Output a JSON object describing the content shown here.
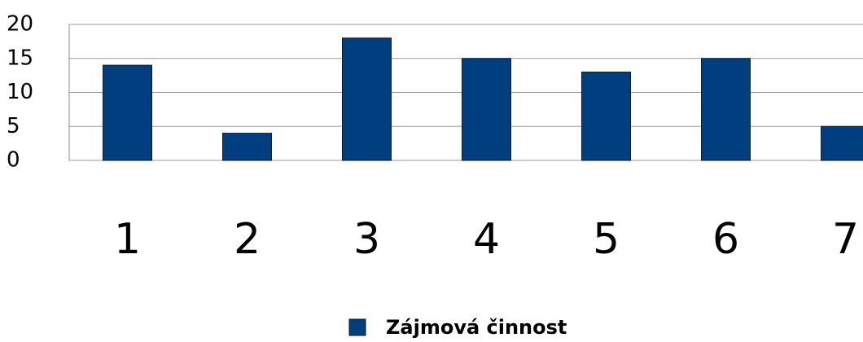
{
  "chart_data": {
    "type": "bar",
    "categories": [
      "1",
      "2",
      "3",
      "4",
      "5",
      "6",
      "7"
    ],
    "series": [
      {
        "name": "Zájmová činnost",
        "color": "#003f7f",
        "values": [
          14,
          4,
          18,
          15,
          13,
          15,
          5
        ]
      }
    ],
    "ylim": [
      0,
      20
    ],
    "yticks": [
      0,
      5,
      10,
      15,
      20
    ],
    "grid": true,
    "legend": "bottom"
  }
}
